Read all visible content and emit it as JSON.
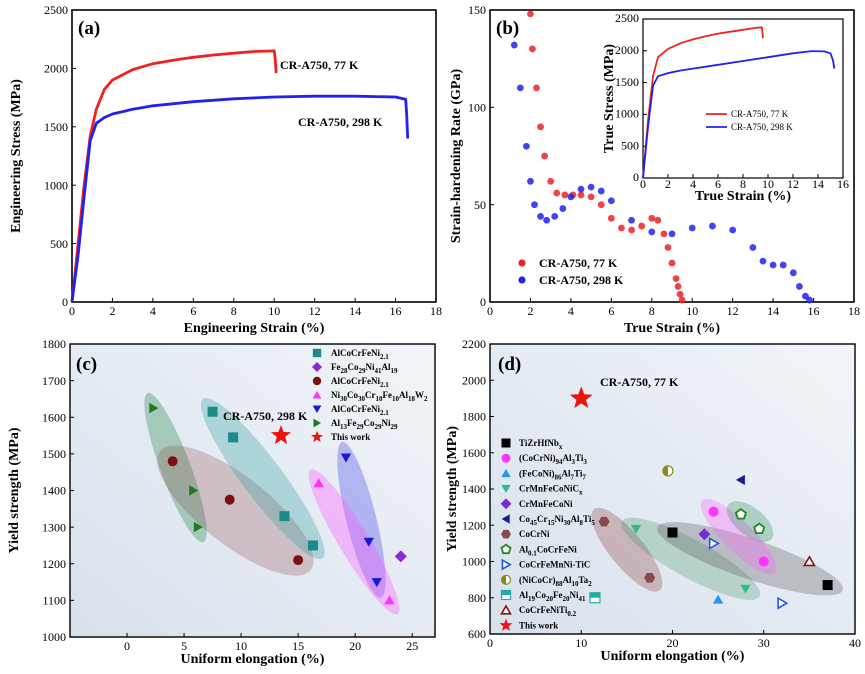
{
  "chart_data": [
    {
      "id": "a",
      "panel_label": "(a)",
      "type": "line",
      "xlabel": "Engineering Strain (%)",
      "ylabel": "Engineering Stress (MPa)",
      "xlim": [
        0,
        18
      ],
      "ylim": [
        0,
        2500
      ],
      "xticks": [
        0,
        2,
        4,
        6,
        8,
        10,
        12,
        14,
        16,
        18
      ],
      "yticks": [
        0,
        500,
        1000,
        1500,
        2000,
        2500
      ],
      "series": [
        {
          "name": "CR-A750, 77 K",
          "color": "#ee2222",
          "x": [
            0,
            0.3,
            0.6,
            0.9,
            1.2,
            1.6,
            2,
            3,
            4,
            5,
            6,
            7,
            8,
            9,
            10,
            10.05,
            10.1
          ],
          "y": [
            0,
            500,
            1000,
            1420,
            1650,
            1820,
            1900,
            1990,
            2040,
            2070,
            2095,
            2115,
            2130,
            2145,
            2150,
            2080,
            1960
          ]
        },
        {
          "name": "CR-A750, 298 K",
          "color": "#2222ee",
          "x": [
            0,
            0.3,
            0.6,
            0.9,
            1.2,
            1.6,
            2,
            3,
            4,
            6,
            8,
            10,
            12,
            14,
            16,
            16.5,
            16.55,
            16.6
          ],
          "y": [
            0,
            400,
            900,
            1380,
            1530,
            1580,
            1610,
            1650,
            1680,
            1715,
            1740,
            1755,
            1762,
            1762,
            1755,
            1735,
            1600,
            1400
          ]
        }
      ],
      "annotations": [
        "CR-A750, 77 K",
        "CR-A750, 298 K"
      ]
    },
    {
      "id": "b",
      "panel_label": "(b)",
      "type": "scatter",
      "xlabel": "True Strain (%)",
      "ylabel": "Strain-hardening Rate (GPa)",
      "xlim": [
        0,
        18
      ],
      "ylim": [
        0,
        150
      ],
      "xticks": [
        0,
        2,
        4,
        6,
        8,
        10,
        12,
        14,
        16,
        18
      ],
      "yticks": [
        0,
        50,
        100,
        150
      ],
      "series": [
        {
          "name": "CR-A750, 77 K",
          "color": "#ee2222",
          "x": [
            2.0,
            2.1,
            2.3,
            2.5,
            2.7,
            3.0,
            3.3,
            3.7,
            4.1,
            4.5,
            5.0,
            5.5,
            6.0,
            6.5,
            7.0,
            7.5,
            8.0,
            8.3,
            8.6,
            8.8,
            9.0,
            9.2,
            9.3,
            9.4,
            9.5
          ],
          "y": [
            148,
            130,
            110,
            90,
            75,
            62,
            56,
            55,
            55,
            55,
            54,
            50,
            43,
            38,
            37,
            39,
            43,
            42,
            35,
            28,
            20,
            12,
            8,
            4,
            1
          ]
        },
        {
          "name": "CR-A750, 298 K",
          "color": "#2222ee",
          "x": [
            1.2,
            1.5,
            1.8,
            2.0,
            2.2,
            2.5,
            2.8,
            3.2,
            3.6,
            4.0,
            4.5,
            5.0,
            5.5,
            6.0,
            7.0,
            8.0,
            9.0,
            10.0,
            11.0,
            12.0,
            13.0,
            13.5,
            14.0,
            14.5,
            15.0,
            15.3,
            15.6,
            15.8
          ],
          "y": [
            132,
            110,
            80,
            62,
            50,
            44,
            42,
            44,
            48,
            54,
            58,
            59,
            57,
            52,
            42,
            36,
            35,
            38,
            39,
            37,
            28,
            21,
            19,
            19,
            15,
            8,
            3,
            1
          ]
        }
      ],
      "legend": [
        "CR-A750, 77 K",
        "CR-A750, 298 K"
      ],
      "inset": {
        "type": "line",
        "xlabel": "True Strain (%)",
        "ylabel": "True Stress (MPa)",
        "xlim": [
          0,
          16
        ],
        "ylim": [
          0,
          2500
        ],
        "xticks": [
          0,
          2,
          4,
          6,
          8,
          10,
          12,
          14,
          16
        ],
        "yticks": [
          0,
          500,
          1000,
          1500,
          2000,
          2500
        ],
        "series": [
          {
            "name": "CR-A750, 77 K",
            "color": "#ee2222",
            "x": [
              0,
              0.4,
              0.8,
              1.2,
              2,
              3,
              4,
              5,
              6,
              7,
              8,
              9,
              9.5,
              9.55,
              9.6
            ],
            "y": [
              0,
              900,
              1600,
              1900,
              2030,
              2120,
              2180,
              2230,
              2270,
              2300,
              2330,
              2360,
              2370,
              2300,
              2200
            ]
          },
          {
            "name": "CR-A750, 298 K",
            "color": "#2222ee",
            "x": [
              0,
              0.4,
              0.8,
              1.2,
              2,
              3,
              4,
              6,
              8,
              10,
              12,
              13.5,
              14.5,
              15,
              15.2,
              15.3
            ],
            "y": [
              0,
              800,
              1450,
              1600,
              1650,
              1690,
              1720,
              1780,
              1840,
              1900,
              1960,
              1995,
              1990,
              1960,
              1850,
              1720
            ]
          }
        ],
        "legend": [
          "CR-A750, 77 K",
          "CR-A750, 298 K"
        ]
      }
    },
    {
      "id": "c",
      "panel_label": "(c)",
      "type": "scatter",
      "xlabel": "Uniform elongation (%)",
      "ylabel": "Yield strength (MPa)",
      "xlim": [
        -5,
        27
      ],
      "ylim": [
        1000,
        1800
      ],
      "xticks": [
        0,
        5,
        10,
        15,
        20,
        25
      ],
      "yticks": [
        1000,
        1100,
        1200,
        1300,
        1400,
        1500,
        1600,
        1700,
        1800
      ],
      "series": [
        {
          "name": "AlCoCrFeNi2.1",
          "color": "#1a8a8a",
          "marker": "square",
          "x": [
            7.5,
            9.3,
            13.8,
            16.3
          ],
          "y": [
            1615,
            1545,
            1330,
            1250
          ]
        },
        {
          "name": "Fe28Co29Ni41Al19",
          "color": "#8a2ad6",
          "marker": "diamond",
          "x": [
            24
          ],
          "y": [
            1220
          ]
        },
        {
          "name": "AlCoCrFeNi2.1",
          "color": "#7a1010",
          "marker": "circle",
          "x": [
            4,
            9,
            15
          ],
          "y": [
            1480,
            1375,
            1210
          ]
        },
        {
          "name": "Ni30Co30Cr10Fe10Al18W2",
          "color": "#ff33ff",
          "marker": "triangle-up",
          "x": [
            16.8,
            23
          ],
          "y": [
            1420,
            1100
          ]
        },
        {
          "name": "AlCoCrFeNi2.1",
          "color": "#1a1ad6",
          "marker": "triangle-down",
          "x": [
            19.2,
            21.2,
            21.9
          ],
          "y": [
            1490,
            1260,
            1150
          ]
        },
        {
          "name": "Al13Fe29Co29Ni29",
          "color": "#1e7a1e",
          "marker": "triangle-right",
          "x": [
            2.3,
            5.8,
            6.2
          ],
          "y": [
            1625,
            1400,
            1300
          ]
        },
        {
          "name": "This work",
          "color": "#ee1111",
          "marker": "star",
          "x": [
            13.5
          ],
          "y": [
            1550
          ]
        }
      ],
      "legend": [
        "AlCoCrFeNi2.1",
        "Fe28Co29Ni41Al19",
        "AlCoCrFeNi2.1",
        "Ni30Co30Cr10Fe10Al18W2",
        "AlCoCrFeNi2.1",
        "Al13Fe29Co29Ni29",
        "This work"
      ],
      "annotations": [
        "CR-A750, 298 K"
      ]
    },
    {
      "id": "d",
      "panel_label": "(d)",
      "type": "scatter",
      "xlabel": "Uniform elongation (%)",
      "ylabel": "Yield strength (MPa)",
      "xlim": [
        0,
        40
      ],
      "ylim": [
        600,
        2200
      ],
      "xticks": [
        0,
        10,
        20,
        30,
        40
      ],
      "yticks": [
        600,
        800,
        1000,
        1200,
        1400,
        1600,
        1800,
        2000,
        2200
      ],
      "series": [
        {
          "name": "TiZrHfNbx",
          "color": "#000000",
          "marker": "square",
          "x": [
            20,
            37
          ],
          "y": [
            1160,
            870
          ]
        },
        {
          "name": "(CoCrNi)94Al3Ti3",
          "color": "#ff33ff",
          "marker": "circle",
          "x": [
            24.5,
            30
          ],
          "y": [
            1275,
            1000
          ]
        },
        {
          "name": "(FeCoNi)86Al7Ti7",
          "color": "#2299ee",
          "marker": "triangle-up",
          "x": [
            25
          ],
          "y": [
            790
          ]
        },
        {
          "name": "CrMnFeCoNiCx",
          "color": "#33bb88",
          "marker": "triangle-down",
          "x": [
            16,
            28
          ],
          "y": [
            1180,
            850
          ]
        },
        {
          "name": "CrMnFeCoNi",
          "color": "#7a2ad6",
          "marker": "diamond",
          "x": [
            23.5
          ],
          "y": [
            1150
          ]
        },
        {
          "name": "Co45Cr15Ni30Al8Ti5",
          "color": "#1a1a9a",
          "marker": "triangle-left",
          "x": [
            27.5
          ],
          "y": [
            1450
          ]
        },
        {
          "name": "CoCrNi",
          "color": "#8a4a4a",
          "marker": "hexagon",
          "x": [
            12.5,
            17.5
          ],
          "y": [
            1220,
            910
          ]
        },
        {
          "name": "Al0.1CoCrFeNi",
          "color": "#1e8a1e",
          "marker": "pentagon-open",
          "x": [
            27.5,
            29.5
          ],
          "y": [
            1260,
            1180
          ]
        },
        {
          "name": "CoCrFeMnNi-TiC",
          "color": "#2255ee",
          "marker": "triangle-right-open",
          "x": [
            24.5,
            32
          ],
          "y": [
            1100,
            770
          ]
        },
        {
          "name": "(NiCoCr)88Al10Ta2",
          "color": "#8a8a1a",
          "marker": "circle-half",
          "x": [
            19.5
          ],
          "y": [
            1500
          ]
        },
        {
          "name": "Al19Co20Fe20Ni41",
          "color": "#22aaaa",
          "marker": "square-half",
          "x": [
            11.5
          ],
          "y": [
            800
          ]
        },
        {
          "name": "CoCrFeNiTi0.2",
          "color": "#8a1010",
          "marker": "triangle-up-open",
          "x": [
            35
          ],
          "y": [
            1000
          ]
        },
        {
          "name": "This work",
          "color": "#ee1111",
          "marker": "star",
          "x": [
            10
          ],
          "y": [
            1900
          ]
        }
      ],
      "legend": [
        "TiZrHfNbx",
        "(CoCrNi)94Al3Ti3",
        "(FeCoNi)86Al7Ti7",
        "CrMnFeCoNiCx",
        "CrMnFeCoNi",
        "Co45Cr15Ni30Al8Ti5",
        "CoCrNi",
        "Al0.1CoCrFeNi",
        "CoCrFeMnNi-TiC",
        "(NiCoCr)88Al10Ta2",
        "Al19Co20Fe20Ni41",
        "CoCrFeNiTi0.2",
        "This work"
      ],
      "annotations": [
        "CR-A750, 77 K"
      ]
    }
  ]
}
